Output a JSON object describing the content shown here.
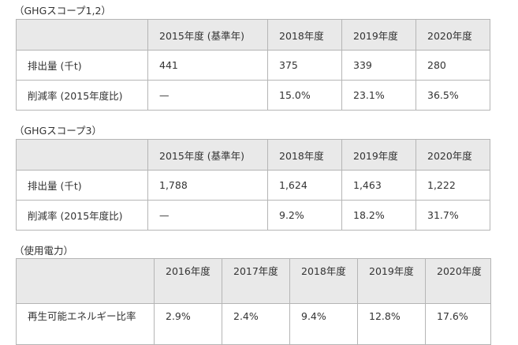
{
  "scope12": {
    "caption": "（GHGスコープ1,2）",
    "columns": [
      "2015年度 (基準年)",
      "2018年度",
      "2019年度",
      "2020年度"
    ],
    "rows": [
      {
        "label": "排出量 (千t)",
        "values": [
          "441",
          "375",
          "339",
          "280"
        ]
      },
      {
        "label": "削減率 (2015年度比)",
        "values": [
          "—",
          "15.0%",
          "23.1%",
          "36.5%"
        ]
      }
    ]
  },
  "scope3": {
    "caption": "（GHGスコープ3）",
    "columns": [
      "2015年度 (基準年)",
      "2018年度",
      "2019年度",
      "2020年度"
    ],
    "rows": [
      {
        "label": "排出量 (千t)",
        "values": [
          "1,788",
          "1,624",
          "1,463",
          "1,222"
        ]
      },
      {
        "label": "削減率 (2015年度比)",
        "values": [
          "—",
          "9.2%",
          "18.2%",
          "31.7%"
        ]
      }
    ]
  },
  "power": {
    "caption": "（使用電力）",
    "columns": [
      "2016年度",
      "2017年度",
      "2018年度",
      "2019年度",
      "2020年度"
    ],
    "rows": [
      {
        "label": "再生可能エネルギー比率",
        "values": [
          "2.9%",
          "2.4%",
          "9.4%",
          "12.8%",
          "17.6%"
        ]
      }
    ]
  }
}
